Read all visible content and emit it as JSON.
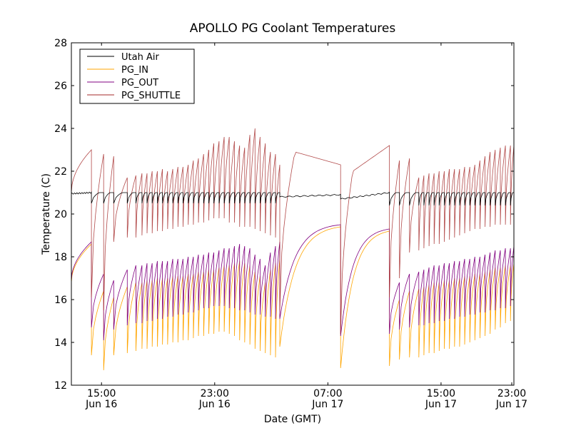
{
  "chart_data": {
    "type": "line",
    "title": "APOLLO PG Coolant Temperatures",
    "xlabel": "Date (GMT)",
    "ylabel": "Temperature (C)",
    "xlim_hours": [
      -2.13,
      29.15
    ],
    "x_origin": "Jun 16 15:00",
    "ylim": [
      12,
      28
    ],
    "yticks": [
      12,
      14,
      16,
      18,
      20,
      22,
      24,
      26,
      28
    ],
    "xticks": [
      {
        "hour": 0,
        "time": "15:00",
        "date": "Jun 16"
      },
      {
        "hour": 8,
        "time": "23:00",
        "date": "Jun 16"
      },
      {
        "hour": 16,
        "time": "07:00",
        "date": "Jun 17"
      },
      {
        "hour": 24,
        "time": "15:00",
        "date": "Jun 17"
      },
      {
        "hour": 32,
        "time": "23:00",
        "date": "Jun 17"
      }
    ],
    "grid": false,
    "legend_position": "top-left",
    "series": [
      {
        "name": "Utah Air",
        "color": "#000000"
      },
      {
        "name": "PG_IN",
        "color": "#ffa500"
      },
      {
        "name": "PG_OUT",
        "color": "#800080"
      },
      {
        "name": "PG_SHUTTLE",
        "color": "#a52a2a"
      }
    ],
    "phases": [
      {
        "kind": "warmup",
        "start_hour": -2.13,
        "end_hour": -0.71,
        "shuttle": [
          21.0,
          23.0
        ],
        "in": [
          16.8,
          18.6
        ],
        "out": [
          16.9,
          18.7
        ],
        "air": [
          20.95,
          21.0
        ]
      },
      {
        "kind": "cycling",
        "start_hour": -0.71,
        "end_hour": 12.6,
        "cycle_hours": [
          -0.71,
          0.15,
          0.86,
          1.82,
          2.43,
          2.86,
          3.22,
          3.58,
          3.95,
          4.31,
          4.67,
          5.04,
          5.4,
          5.76,
          6.13,
          6.49,
          6.85,
          7.22,
          7.58,
          7.94,
          8.31,
          8.67,
          9.03,
          9.4,
          9.76,
          10.12,
          10.49,
          10.85,
          11.21,
          11.58,
          11.94,
          12.3,
          12.6
        ],
        "shuttle_peaks": [
          22.8,
          22.7,
          21.7,
          21.8,
          21.9,
          21.9,
          22.0,
          22.0,
          22.1,
          22.0,
          22.1,
          22.2,
          22.2,
          22.3,
          22.5,
          22.6,
          22.8,
          23.0,
          23.3,
          23.4,
          23.6,
          23.6,
          23.4,
          23.2,
          23.1,
          23.7,
          24.0,
          23.6,
          23.3,
          22.9,
          22.8,
          22.3,
          22.0
        ],
        "shuttle_troughs": [
          16.1,
          15.5,
          18.7,
          18.9,
          18.9,
          19.0,
          19.1,
          19.1,
          19.2,
          19.2,
          19.3,
          19.3,
          19.4,
          19.4,
          19.5,
          19.5,
          19.6,
          19.6,
          19.7,
          19.8,
          19.8,
          19.8,
          19.6,
          19.6,
          19.4,
          19.4,
          19.4,
          19.3,
          19.2,
          19.1,
          19.0,
          18.9,
          15.5
        ],
        "out_peaks": [
          17.2,
          16.9,
          17.4,
          17.6,
          17.6,
          17.7,
          17.7,
          17.8,
          17.8,
          17.8,
          17.9,
          17.9,
          17.9,
          18.0,
          18.0,
          18.1,
          18.1,
          18.2,
          18.2,
          18.3,
          18.4,
          18.4,
          18.5,
          18.6,
          18.5,
          18.4,
          18.1,
          17.9,
          17.6,
          18.2,
          18.5,
          18.7,
          18.9
        ],
        "out_troughs": [
          14.7,
          14.1,
          14.6,
          14.8,
          14.9,
          14.9,
          15.0,
          15.0,
          15.1,
          15.1,
          15.2,
          15.2,
          15.3,
          15.3,
          15.4,
          15.4,
          15.5,
          15.6,
          15.6,
          15.7,
          15.7,
          15.7,
          15.6,
          15.6,
          15.5,
          15.5,
          15.4,
          15.3,
          15.3,
          15.2,
          15.2,
          15.1,
          15.1
        ],
        "in_troughs": [
          13.4,
          12.7,
          13.4,
          13.5,
          13.6,
          13.7,
          13.7,
          13.8,
          13.8,
          13.9,
          13.9,
          14.0,
          14.0,
          14.1,
          14.1,
          14.2,
          14.3,
          14.3,
          14.4,
          14.4,
          14.5,
          14.5,
          14.4,
          14.3,
          14.1,
          14.0,
          13.9,
          13.7,
          13.6,
          13.5,
          13.4,
          13.3,
          13.8
        ],
        "air_range": [
          20.5,
          21.0
        ]
      },
      {
        "kind": "recovery",
        "start_hour": 12.6,
        "end_hour": 16.9,
        "shuttle": [
          15.5,
          22.9,
          22.3
        ],
        "in": [
          13.8,
          19.4
        ],
        "out": [
          15.1,
          19.5
        ],
        "air": [
          20.8,
          20.9
        ]
      },
      {
        "kind": "recovery",
        "start_hour": 16.9,
        "end_hour": 20.35,
        "shuttle": [
          14.4,
          22.0,
          23.2
        ],
        "in": [
          12.8,
          19.2
        ],
        "out": [
          14.3,
          19.3
        ],
        "air": [
          20.7,
          21.0
        ]
      },
      {
        "kind": "cycling",
        "start_hour": 20.35,
        "end_hour": 29.15,
        "cycle_hours": [
          20.35,
          21.06,
          21.77,
          22.43,
          22.79,
          23.15,
          23.51,
          23.87,
          24.23,
          24.59,
          24.95,
          25.31,
          25.67,
          26.03,
          26.39,
          26.75,
          27.11,
          27.47,
          27.83,
          28.19,
          28.55,
          28.91
        ],
        "shuttle_peaks": [
          22.5,
          22.6,
          21.7,
          21.8,
          21.9,
          21.9,
          22.0,
          22.0,
          22.1,
          22.1,
          22.1,
          22.2,
          22.2,
          22.3,
          22.5,
          22.7,
          22.9,
          23.0,
          23.1,
          23.2,
          23.2,
          23.2
        ],
        "shuttle_troughs": [
          16.1,
          17.0,
          18.2,
          18.3,
          18.4,
          18.5,
          18.6,
          18.6,
          18.7,
          18.8,
          18.9,
          19.0,
          19.1,
          19.2,
          19.3,
          19.3,
          19.4,
          19.4,
          19.5,
          19.5,
          19.5,
          19.5
        ],
        "out_peaks": [
          16.8,
          17.2,
          17.3,
          17.4,
          17.5,
          17.6,
          17.6,
          17.7,
          17.7,
          17.8,
          17.8,
          17.9,
          17.9,
          18.0,
          18.0,
          18.1,
          18.2,
          18.3,
          18.3,
          18.4,
          18.4,
          18.5
        ],
        "out_troughs": [
          14.4,
          14.6,
          14.7,
          14.8,
          14.8,
          14.9,
          14.9,
          15.0,
          15.0,
          15.1,
          15.1,
          15.2,
          15.2,
          15.3,
          15.3,
          15.4,
          15.4,
          15.5,
          15.5,
          15.6,
          15.6,
          15.7
        ],
        "in_troughs": [
          12.9,
          13.2,
          13.3,
          13.3,
          13.4,
          13.5,
          13.5,
          13.6,
          13.7,
          13.7,
          13.8,
          13.8,
          13.9,
          14.0,
          14.1,
          14.2,
          14.3,
          14.4,
          14.6,
          14.7,
          14.9,
          15.0
        ],
        "air_range": [
          20.4,
          21.0
        ]
      }
    ]
  }
}
